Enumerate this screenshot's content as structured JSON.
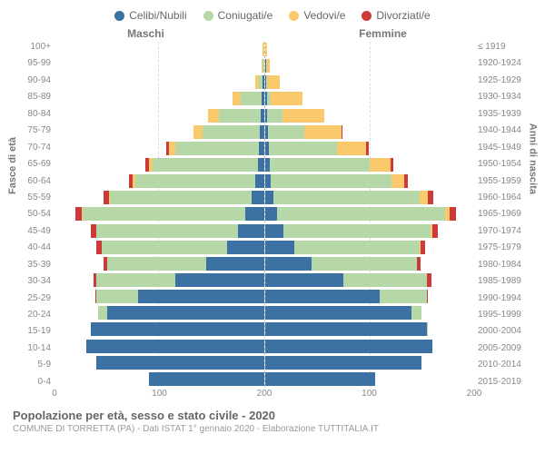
{
  "chart": {
    "type": "population-pyramid",
    "title": "Popolazione per età, sesso e stato civile - 2020",
    "subtitle": "COMUNE DI TORRETTA (PA) - Dati ISTAT 1° gennaio 2020 - Elaborazione TUTTITALIA.IT",
    "legend": [
      {
        "label": "Celibi/Nubili",
        "color": "#3b71a3"
      },
      {
        "label": "Coniugati/e",
        "color": "#b6d7a8"
      },
      {
        "label": "Vedovi/e",
        "color": "#f9c96b"
      },
      {
        "label": "Divorziati/e",
        "color": "#cc3a39"
      }
    ],
    "header_left": "Maschi",
    "header_right": "Femmine",
    "y_axis_left_title": "Fasce di età",
    "y_axis_right_title": "Anni di nascita",
    "x_max": 200,
    "x_ticks": [
      200,
      100,
      0,
      100,
      200
    ],
    "age_labels": [
      "100+",
      "95-99",
      "90-94",
      "85-89",
      "80-84",
      "75-79",
      "70-74",
      "65-69",
      "60-64",
      "55-59",
      "50-54",
      "45-49",
      "40-44",
      "35-39",
      "30-34",
      "25-29",
      "20-24",
      "15-19",
      "10-14",
      "5-9",
      "0-4"
    ],
    "year_labels": [
      "≤ 1919",
      "1920-1924",
      "1925-1929",
      "1930-1934",
      "1935-1939",
      "1940-1944",
      "1945-1949",
      "1950-1954",
      "1955-1959",
      "1960-1964",
      "1965-1969",
      "1970-1974",
      "1975-1979",
      "1980-1984",
      "1985-1989",
      "1990-1994",
      "1995-1999",
      "2000-2004",
      "2005-2009",
      "2010-2014",
      "2015-2019"
    ],
    "male": [
      {
        "c": 0,
        "m": 0,
        "w": 1,
        "d": 0
      },
      {
        "c": 0,
        "m": 1,
        "w": 1,
        "d": 0
      },
      {
        "c": 1,
        "m": 4,
        "w": 3,
        "d": 0
      },
      {
        "c": 2,
        "m": 20,
        "w": 8,
        "d": 0
      },
      {
        "c": 3,
        "m": 40,
        "w": 10,
        "d": 0
      },
      {
        "c": 4,
        "m": 55,
        "w": 8,
        "d": 0
      },
      {
        "c": 5,
        "m": 80,
        "w": 6,
        "d": 2
      },
      {
        "c": 6,
        "m": 100,
        "w": 4,
        "d": 3
      },
      {
        "c": 8,
        "m": 115,
        "w": 2,
        "d": 4
      },
      {
        "c": 12,
        "m": 135,
        "w": 1,
        "d": 5
      },
      {
        "c": 18,
        "m": 155,
        "w": 1,
        "d": 6
      },
      {
        "c": 25,
        "m": 135,
        "w": 0,
        "d": 5
      },
      {
        "c": 35,
        "m": 120,
        "w": 0,
        "d": 5
      },
      {
        "c": 55,
        "m": 95,
        "w": 0,
        "d": 3
      },
      {
        "c": 85,
        "m": 75,
        "w": 0,
        "d": 3
      },
      {
        "c": 120,
        "m": 40,
        "w": 0,
        "d": 1
      },
      {
        "c": 150,
        "m": 8,
        "w": 0,
        "d": 0
      },
      {
        "c": 165,
        "m": 0,
        "w": 0,
        "d": 0
      },
      {
        "c": 170,
        "m": 0,
        "w": 0,
        "d": 0
      },
      {
        "c": 160,
        "m": 0,
        "w": 0,
        "d": 0
      },
      {
        "c": 110,
        "m": 0,
        "w": 0,
        "d": 0
      }
    ],
    "female": [
      {
        "c": 0,
        "m": 0,
        "w": 2,
        "d": 0
      },
      {
        "c": 1,
        "m": 0,
        "w": 4,
        "d": 0
      },
      {
        "c": 1,
        "m": 1,
        "w": 12,
        "d": 0
      },
      {
        "c": 2,
        "m": 4,
        "w": 30,
        "d": 0
      },
      {
        "c": 2,
        "m": 15,
        "w": 40,
        "d": 0
      },
      {
        "c": 3,
        "m": 35,
        "w": 35,
        "d": 1
      },
      {
        "c": 4,
        "m": 65,
        "w": 28,
        "d": 2
      },
      {
        "c": 5,
        "m": 95,
        "w": 20,
        "d": 3
      },
      {
        "c": 6,
        "m": 115,
        "w": 12,
        "d": 4
      },
      {
        "c": 8,
        "m": 140,
        "w": 8,
        "d": 5
      },
      {
        "c": 12,
        "m": 160,
        "w": 5,
        "d": 6
      },
      {
        "c": 18,
        "m": 140,
        "w": 2,
        "d": 5
      },
      {
        "c": 28,
        "m": 120,
        "w": 1,
        "d": 4
      },
      {
        "c": 45,
        "m": 100,
        "w": 0,
        "d": 4
      },
      {
        "c": 75,
        "m": 80,
        "w": 0,
        "d": 4
      },
      {
        "c": 110,
        "m": 45,
        "w": 0,
        "d": 1
      },
      {
        "c": 140,
        "m": 10,
        "w": 0,
        "d": 0
      },
      {
        "c": 155,
        "m": 1,
        "w": 0,
        "d": 0
      },
      {
        "c": 160,
        "m": 0,
        "w": 0,
        "d": 0
      },
      {
        "c": 150,
        "m": 0,
        "w": 0,
        "d": 0
      },
      {
        "c": 105,
        "m": 0,
        "w": 0,
        "d": 0
      }
    ]
  }
}
